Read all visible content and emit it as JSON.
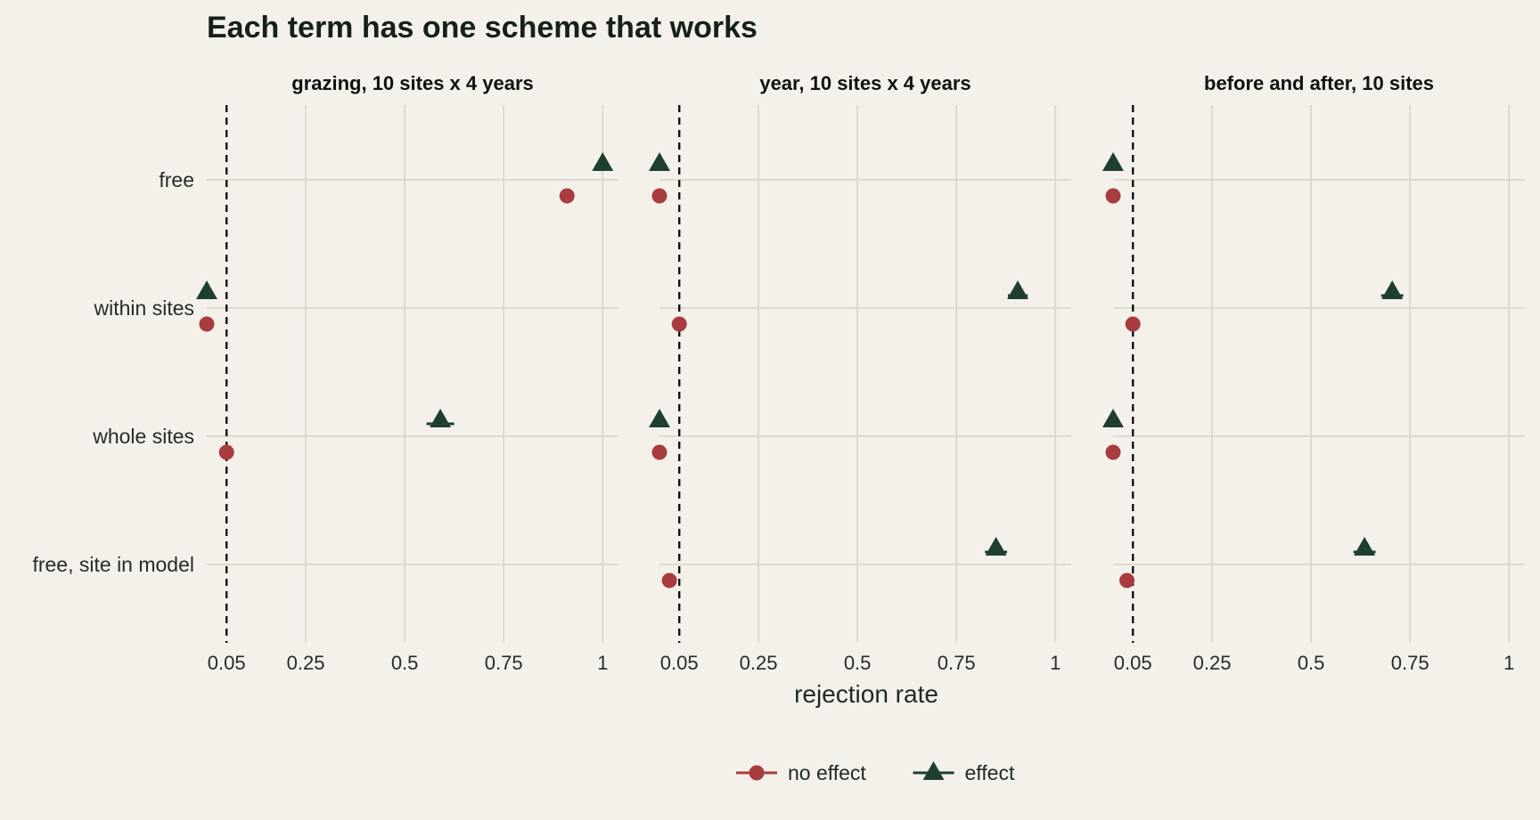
{
  "chart_data": {
    "type": "scatter",
    "title": "Each term has one scheme that works",
    "xlabel": "rejection rate",
    "ylabel": "",
    "xlim": [
      0,
      1.04
    ],
    "x_ticks": [
      0.05,
      0.25,
      0.5,
      0.75,
      1
    ],
    "x_tick_labels": [
      "0.05",
      "0.25",
      "0.5",
      "0.75",
      "1"
    ],
    "reference_line_x": 0.05,
    "categories": [
      "free",
      "within sites",
      "whole sites",
      "free, site in model"
    ],
    "grid": true,
    "legend_position": "bottom",
    "legend": [
      {
        "name": "no effect",
        "marker": "circle",
        "color": "#a83c3f"
      },
      {
        "name": "effect",
        "marker": "triangle",
        "color": "#1f3f2e"
      }
    ],
    "facets": [
      {
        "title": "grazing, 10 sites x 4 years",
        "series": [
          {
            "name": "no effect",
            "values": [
              0.91,
              0.0,
              0.05,
              null
            ],
            "errors": [
              0,
              0,
              0,
              0
            ]
          },
          {
            "name": "effect",
            "values": [
              1.0,
              0.0,
              0.59,
              null
            ],
            "errors": [
              0,
              0,
              0.035,
              0
            ]
          }
        ]
      },
      {
        "title": "year, 10 sites x 4 years",
        "series": [
          {
            "name": "no effect",
            "values": [
              0.0,
              0.05,
              0.0,
              0.025
            ],
            "errors": [
              0,
              0,
              0,
              0
            ]
          },
          {
            "name": "effect",
            "values": [
              0.0,
              0.905,
              0.0,
              0.85
            ],
            "errors": [
              0,
              0.025,
              0,
              0.028
            ]
          }
        ]
      },
      {
        "title": "before and after, 10 sites",
        "series": [
          {
            "name": "no effect",
            "values": [
              0.0,
              0.05,
              0.0,
              0.035
            ],
            "errors": [
              0,
              0,
              0,
              0
            ]
          },
          {
            "name": "effect",
            "values": [
              0.0,
              0.705,
              0.0,
              0.635
            ],
            "errors": [
              0,
              0.028,
              0,
              0.028
            ]
          }
        ]
      }
    ]
  }
}
